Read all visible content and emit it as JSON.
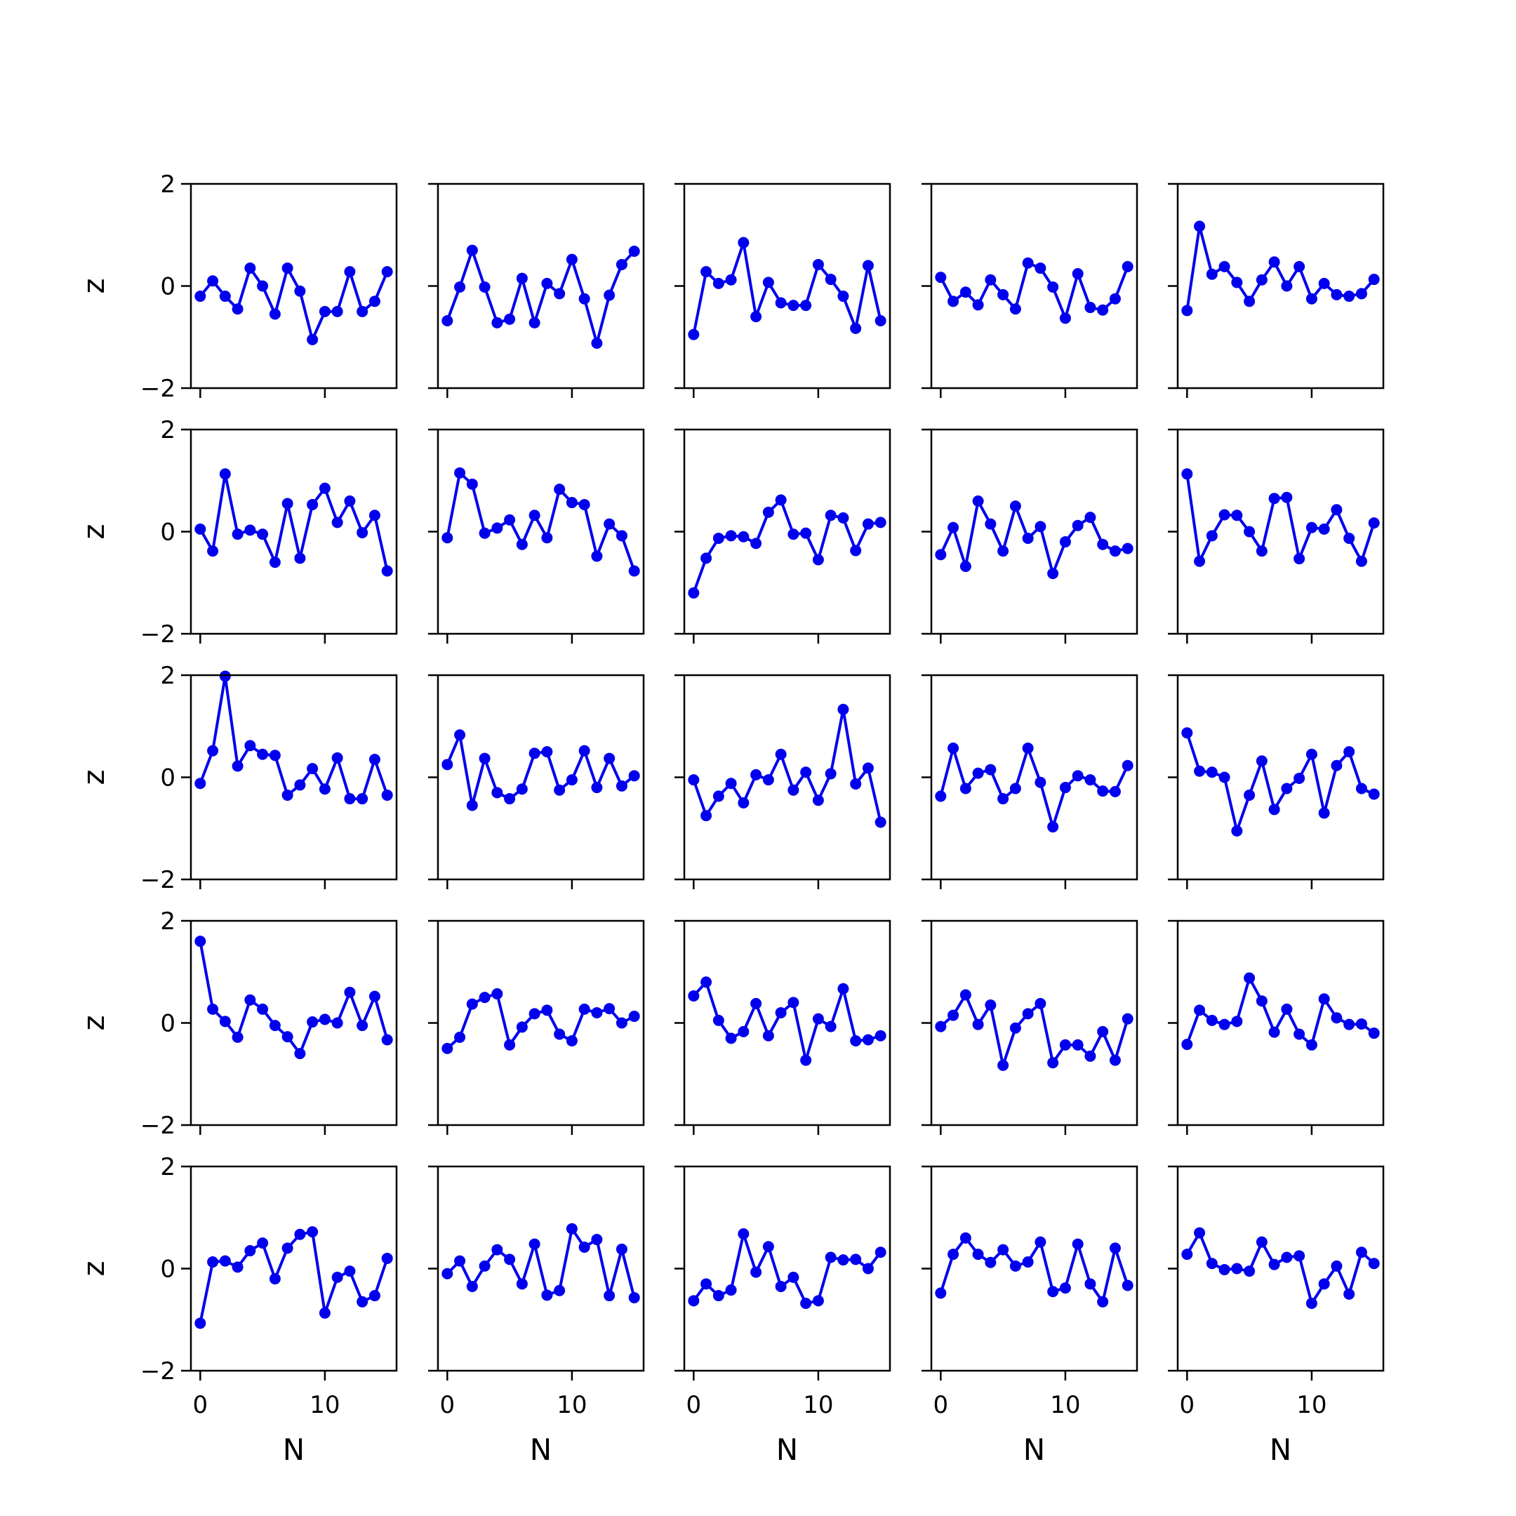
{
  "chart_data": {
    "type": "line",
    "layout": "5x5 small multiples, shared axes",
    "xlabel": "N",
    "ylabel": "z",
    "xlim": [
      -0.75,
      15.75
    ],
    "ylim": [
      -2,
      2
    ],
    "xticks": [
      0,
      10
    ],
    "yticks": [
      -2,
      0,
      2
    ],
    "line_color": "#0000ee",
    "marker": "circle",
    "x": [
      0,
      1,
      2,
      3,
      4,
      5,
      6,
      7,
      8,
      9,
      10,
      11,
      12,
      13,
      14,
      15
    ],
    "panels": [
      {
        "row": 1,
        "col": 1,
        "values": [
          -0.2,
          0.1,
          -0.2,
          -0.45,
          0.35,
          0.0,
          -0.55,
          0.35,
          -0.1,
          -1.05,
          -0.5,
          -0.5,
          0.28,
          -0.5,
          -0.3,
          0.28
        ]
      },
      {
        "row": 1,
        "col": 2,
        "values": [
          -0.68,
          -0.02,
          0.7,
          -0.02,
          -0.72,
          -0.65,
          0.15,
          -0.72,
          0.05,
          -0.15,
          0.52,
          -0.25,
          -1.12,
          -0.18,
          0.42,
          0.68
        ]
      },
      {
        "row": 1,
        "col": 3,
        "values": [
          -0.95,
          0.28,
          0.05,
          0.12,
          0.85,
          -0.6,
          0.07,
          -0.33,
          -0.38,
          -0.38,
          0.42,
          0.13,
          -0.2,
          -0.83,
          0.4,
          -0.68
        ]
      },
      {
        "row": 1,
        "col": 4,
        "values": [
          0.17,
          -0.3,
          -0.12,
          -0.37,
          0.12,
          -0.17,
          -0.45,
          0.45,
          0.35,
          -0.02,
          -0.63,
          0.24,
          -0.42,
          -0.47,
          -0.25,
          0.38
        ]
      },
      {
        "row": 1,
        "col": 5,
        "values": [
          -0.48,
          1.17,
          0.23,
          0.38,
          0.07,
          -0.3,
          0.12,
          0.47,
          0.0,
          0.38,
          -0.25,
          0.05,
          -0.17,
          -0.2,
          -0.15,
          0.13
        ]
      },
      {
        "row": 2,
        "col": 1,
        "values": [
          0.05,
          -0.38,
          1.13,
          -0.05,
          0.03,
          -0.05,
          -0.6,
          0.55,
          -0.52,
          0.53,
          0.85,
          0.18,
          0.6,
          -0.02,
          0.32,
          -0.77
        ]
      },
      {
        "row": 2,
        "col": 2,
        "values": [
          -0.12,
          1.15,
          0.93,
          -0.03,
          0.07,
          0.23,
          -0.25,
          0.32,
          -0.12,
          0.83,
          0.57,
          0.53,
          -0.48,
          0.15,
          -0.08,
          -0.77
        ]
      },
      {
        "row": 2,
        "col": 3,
        "values": [
          -1.2,
          -0.52,
          -0.13,
          -0.08,
          -0.1,
          -0.23,
          0.38,
          0.62,
          -0.05,
          -0.03,
          -0.55,
          0.32,
          0.27,
          -0.37,
          0.15,
          0.18
        ]
      },
      {
        "row": 2,
        "col": 4,
        "values": [
          -0.45,
          0.08,
          -0.68,
          0.6,
          0.15,
          -0.38,
          0.5,
          -0.13,
          0.1,
          -0.82,
          -0.2,
          0.12,
          0.28,
          -0.25,
          -0.38,
          -0.33
        ]
      },
      {
        "row": 2,
        "col": 5,
        "values": [
          1.13,
          -0.58,
          -0.08,
          0.33,
          0.32,
          0.0,
          -0.38,
          0.65,
          0.67,
          -0.53,
          0.08,
          0.05,
          0.43,
          -0.13,
          -0.58,
          0.17
        ]
      },
      {
        "row": 3,
        "col": 1,
        "values": [
          -0.12,
          0.52,
          1.98,
          0.22,
          0.62,
          0.45,
          0.43,
          -0.35,
          -0.15,
          0.17,
          -0.23,
          0.38,
          -0.42,
          -0.42,
          0.35,
          -0.35
        ]
      },
      {
        "row": 3,
        "col": 2,
        "values": [
          0.25,
          0.83,
          -0.55,
          0.37,
          -0.3,
          -0.42,
          -0.23,
          0.47,
          0.5,
          -0.25,
          -0.05,
          0.52,
          -0.2,
          0.37,
          -0.17,
          0.03
        ]
      },
      {
        "row": 3,
        "col": 3,
        "values": [
          -0.05,
          -0.75,
          -0.37,
          -0.12,
          -0.5,
          0.05,
          -0.05,
          0.45,
          -0.25,
          0.1,
          -0.45,
          0.07,
          1.33,
          -0.13,
          0.18,
          -0.88
        ]
      },
      {
        "row": 3,
        "col": 4,
        "values": [
          -0.37,
          0.57,
          -0.22,
          0.08,
          0.15,
          -0.42,
          -0.22,
          0.57,
          -0.1,
          -0.97,
          -0.2,
          0.03,
          -0.05,
          -0.27,
          -0.28,
          0.23
        ]
      },
      {
        "row": 3,
        "col": 5,
        "values": [
          0.87,
          0.12,
          0.1,
          0.0,
          -1.05,
          -0.35,
          0.32,
          -0.63,
          -0.22,
          -0.02,
          0.45,
          -0.7,
          0.23,
          0.5,
          -0.22,
          -0.33
        ]
      },
      {
        "row": 4,
        "col": 1,
        "values": [
          1.6,
          0.27,
          0.03,
          -0.28,
          0.45,
          0.27,
          -0.05,
          -0.27,
          -0.6,
          0.02,
          0.07,
          0.0,
          0.6,
          -0.05,
          0.52,
          -0.33
        ]
      },
      {
        "row": 4,
        "col": 2,
        "values": [
          -0.5,
          -0.28,
          0.37,
          0.5,
          0.57,
          -0.43,
          -0.08,
          0.18,
          0.25,
          -0.22,
          -0.35,
          0.27,
          0.2,
          0.28,
          0.0,
          0.13
        ]
      },
      {
        "row": 4,
        "col": 3,
        "values": [
          0.53,
          0.8,
          0.05,
          -0.3,
          -0.17,
          0.38,
          -0.25,
          0.2,
          0.4,
          -0.73,
          0.08,
          -0.07,
          0.67,
          -0.35,
          -0.33,
          -0.25
        ]
      },
      {
        "row": 4,
        "col": 4,
        "values": [
          -0.07,
          0.15,
          0.55,
          -0.03,
          0.35,
          -0.83,
          -0.1,
          0.18,
          0.38,
          -0.78,
          -0.43,
          -0.43,
          -0.65,
          -0.17,
          -0.73,
          0.08
        ]
      },
      {
        "row": 4,
        "col": 5,
        "values": [
          -0.42,
          0.25,
          0.05,
          -0.03,
          0.03,
          0.88,
          0.43,
          -0.18,
          0.27,
          -0.22,
          -0.43,
          0.47,
          0.1,
          -0.03,
          -0.02,
          -0.2
        ]
      },
      {
        "row": 5,
        "col": 1,
        "values": [
          -1.07,
          0.13,
          0.15,
          0.03,
          0.35,
          0.5,
          -0.2,
          0.4,
          0.67,
          0.72,
          -0.87,
          -0.17,
          -0.05,
          -0.65,
          -0.53,
          0.2
        ]
      },
      {
        "row": 5,
        "col": 2,
        "values": [
          -0.1,
          0.15,
          -0.35,
          0.05,
          0.37,
          0.18,
          -0.3,
          0.48,
          -0.52,
          -0.43,
          0.78,
          0.42,
          0.57,
          -0.53,
          0.38,
          -0.57
        ]
      },
      {
        "row": 5,
        "col": 3,
        "values": [
          -0.63,
          -0.3,
          -0.53,
          -0.42,
          0.68,
          -0.07,
          0.43,
          -0.35,
          -0.17,
          -0.68,
          -0.63,
          0.22,
          0.17,
          0.18,
          0.0,
          0.32
        ]
      },
      {
        "row": 5,
        "col": 4,
        "values": [
          -0.48,
          0.28,
          0.6,
          0.28,
          0.12,
          0.37,
          0.05,
          0.13,
          0.52,
          -0.45,
          -0.38,
          0.48,
          -0.3,
          -0.65,
          0.4,
          -0.33
        ]
      },
      {
        "row": 5,
        "col": 5,
        "values": [
          0.28,
          0.7,
          0.1,
          -0.02,
          0.0,
          -0.05,
          0.52,
          0.08,
          0.22,
          0.25,
          -0.68,
          -0.3,
          0.05,
          -0.5,
          0.32,
          0.1
        ]
      }
    ]
  }
}
